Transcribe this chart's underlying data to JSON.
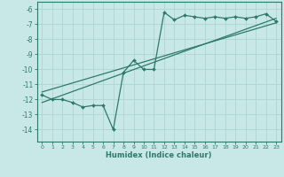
{
  "title": "",
  "xlabel": "Humidex (Indice chaleur)",
  "background_color": "#c8e8e8",
  "grid_color": "#b0d4d4",
  "line_color": "#2d7a6a",
  "xlim": [
    -0.5,
    23.5
  ],
  "ylim": [
    -14.8,
    -5.5
  ],
  "xticks": [
    0,
    1,
    2,
    3,
    4,
    5,
    6,
    7,
    8,
    9,
    10,
    11,
    12,
    13,
    14,
    15,
    16,
    17,
    18,
    19,
    20,
    21,
    22,
    23
  ],
  "yticks": [
    -6,
    -7,
    -8,
    -9,
    -10,
    -11,
    -12,
    -13,
    -14
  ],
  "line1_x": [
    0,
    1,
    2,
    3,
    4,
    5,
    6,
    7,
    8,
    9,
    10,
    11,
    12,
    13,
    14,
    15,
    16,
    17,
    18,
    19,
    20,
    21,
    22,
    23
  ],
  "line1_y": [
    -11.7,
    -12.0,
    -12.0,
    -12.2,
    -12.5,
    -12.4,
    -12.4,
    -14.0,
    -10.2,
    -9.4,
    -10.0,
    -10.0,
    -6.2,
    -6.7,
    -6.4,
    -6.5,
    -6.6,
    -6.5,
    -6.6,
    -6.5,
    -6.6,
    -6.5,
    -6.3,
    -6.8
  ],
  "line2_x": [
    0,
    23
  ],
  "line2_y": [
    -12.2,
    -6.6
  ],
  "line3_x": [
    0,
    23
  ],
  "line3_y": [
    -11.5,
    -6.9
  ],
  "markersize": 2.0
}
